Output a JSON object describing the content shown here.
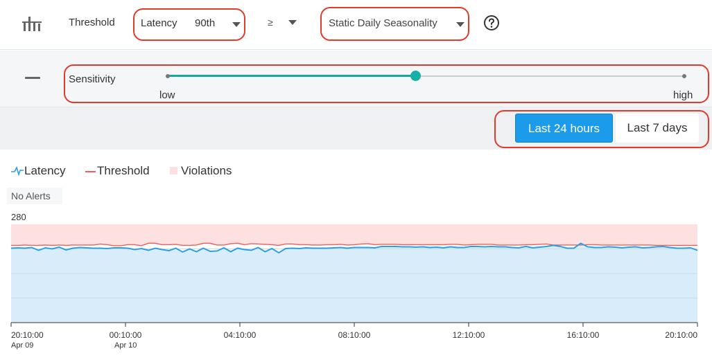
{
  "header": {
    "threshold_label": "Threshold",
    "metric": {
      "name": "Latency",
      "percentile": "90th"
    },
    "comparator": "≥",
    "seasonality": "Static Daily Seasonality",
    "icons": {
      "filter": "filter-bars-icon",
      "help": "question-circle-icon"
    }
  },
  "sensitivity": {
    "label": "Sensitivity",
    "low_label": "low",
    "high_label": "high",
    "value": 0.48
  },
  "time_range": {
    "options": [
      "Last 24 hours",
      "Last 7 days"
    ],
    "selected": "Last 24 hours"
  },
  "legend": {
    "latency": "Latency",
    "threshold": "Threshold",
    "violations": "Violations"
  },
  "alerts_text": "No Alerts",
  "colors": {
    "latency": "#2d9fe0",
    "threshold": "#ee5e5e",
    "violations_fill": "#fde0e0",
    "latency_fill": "#d8ecf9",
    "accent": "#1b9bea",
    "slider": "#17b0a7",
    "highlight_box": "#e03a2a"
  },
  "chart_data": {
    "type": "line",
    "ymax_label": "280",
    "ylim": [
      0,
      280
    ],
    "x_ticks": [
      {
        "time": "20:10:00",
        "date": "Apr 09"
      },
      {
        "time": "00:10:00",
        "date": "Apr 10"
      },
      {
        "time": "04:10:00",
        "date": ""
      },
      {
        "time": "08:10:00",
        "date": ""
      },
      {
        "time": "12:10:00",
        "date": ""
      },
      {
        "time": "16:10:00",
        "date": ""
      },
      {
        "time": "20:10:00",
        "date": ""
      }
    ],
    "series": [
      {
        "name": "Latency",
        "values": [
          212,
          213,
          212,
          214,
          206,
          213,
          210,
          215,
          207,
          212,
          214,
          213,
          212,
          212,
          211,
          213,
          213,
          212,
          208,
          211,
          206,
          212,
          208,
          205,
          212,
          201,
          210,
          202,
          212,
          203,
          204,
          213,
          202,
          212,
          208,
          206,
          214,
          202,
          211,
          199,
          211,
          212,
          211,
          213,
          212,
          212,
          212,
          213,
          214,
          212,
          214,
          214,
          214,
          213,
          217,
          217,
          217,
          216,
          216,
          215,
          216,
          214,
          215,
          213,
          216,
          214,
          214,
          217,
          217,
          216,
          217,
          216,
          216,
          214,
          213,
          217,
          213,
          215,
          217,
          220,
          217,
          212,
          212,
          226,
          216,
          214,
          214,
          216,
          215,
          213,
          215,
          216,
          213,
          214,
          216,
          217,
          214,
          212,
          212,
          213,
          206
        ]
      },
      {
        "name": "Threshold",
        "values": [
          220,
          220,
          221,
          220,
          220,
          221,
          220,
          221,
          220,
          221,
          221,
          221,
          221,
          224,
          222,
          219,
          219,
          222,
          222,
          219,
          226,
          226,
          222,
          222,
          223,
          220,
          220,
          221,
          226,
          226,
          221,
          221,
          225,
          226,
          222,
          225,
          224,
          223,
          222,
          220,
          224,
          224,
          222,
          222,
          221,
          221,
          222,
          222,
          223,
          221,
          222,
          224,
          225,
          222,
          223,
          223,
          223,
          222,
          222,
          222,
          222,
          222,
          222,
          222,
          223,
          223,
          221,
          222,
          223,
          223,
          223,
          221,
          221,
          221,
          221,
          222,
          222,
          223,
          224,
          221,
          221,
          221,
          221,
          221,
          222,
          222,
          221,
          221,
          221,
          221,
          221,
          221,
          221,
          221,
          220,
          220,
          220,
          220,
          220,
          220,
          220
        ]
      }
    ],
    "violations_band": [
      228,
      280
    ]
  }
}
